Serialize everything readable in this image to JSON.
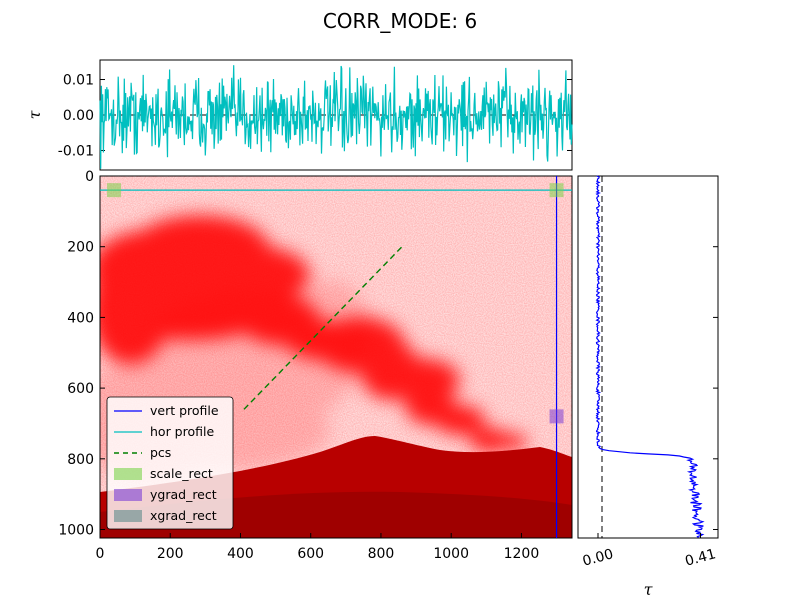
{
  "title": "CORR_MODE: 6",
  "colors": {
    "plume": "#ff0000",
    "volcano": "#b80000",
    "hor_profile": "#00bfbf",
    "vert_profile": "#0000ff",
    "pcs": "#008000",
    "scale_rect": "#7cd34b",
    "ygrad_rect": "#7b3fd6",
    "xgrad_rect": "#5f8a8a"
  },
  "chart_data": [
    {
      "id": "image",
      "type": "heatmap",
      "xlim": [
        0,
        1344
      ],
      "ylim": [
        1024,
        0
      ],
      "xticks": [
        "0",
        "200",
        "400",
        "600",
        "800",
        "1000",
        "1200"
      ],
      "yticks": [
        "0",
        "200",
        "400",
        "600",
        "800",
        "1000"
      ],
      "hor_profile_row": 40,
      "vert_profile_col": 1300,
      "pcs_line": {
        "x": [
          410,
          860
        ],
        "y": [
          660,
          200
        ]
      },
      "rects": [
        {
          "name": "scale_rect",
          "x": 40,
          "y": 40
        },
        {
          "name": "scale_rect",
          "x": 1300,
          "y": 40
        },
        {
          "name": "ygrad_rect",
          "x": 1300,
          "y": 680
        }
      ]
    },
    {
      "id": "hor_profile",
      "type": "line",
      "ylabel": "τ",
      "xlim": [
        0,
        1344
      ],
      "ylim": [
        -0.0155,
        0.0155
      ],
      "yticks": [
        "0.01",
        "0.00",
        "-0.01"
      ],
      "ytick_values": [
        0.01,
        0.0,
        -0.01
      ],
      "amplitude": 0.009,
      "points": 700
    },
    {
      "id": "vert_profile",
      "type": "line",
      "xlabel": "τ",
      "xlim": [
        -0.08,
        0.48
      ],
      "ylim": [
        1024,
        0
      ],
      "xticks": [
        "0.00",
        "0.41"
      ],
      "xtick_values": [
        0.0,
        0.41
      ],
      "background_level": 0.0,
      "plume_level": 0.37,
      "step_row": 785
    }
  ],
  "legend": [
    {
      "label": "vert profile",
      "kind": "line",
      "color": "#0000ff"
    },
    {
      "label": "hor profile",
      "kind": "line",
      "color": "#00bfbf"
    },
    {
      "label": "pcs",
      "kind": "dash",
      "color": "#008000"
    },
    {
      "label": "scale_rect",
      "kind": "patch",
      "color": "#7cd34b"
    },
    {
      "label": "ygrad_rect",
      "kind": "patch",
      "color": "#7b3fd6"
    },
    {
      "label": "xgrad_rect",
      "kind": "patch",
      "color": "#5f8a8a"
    }
  ]
}
